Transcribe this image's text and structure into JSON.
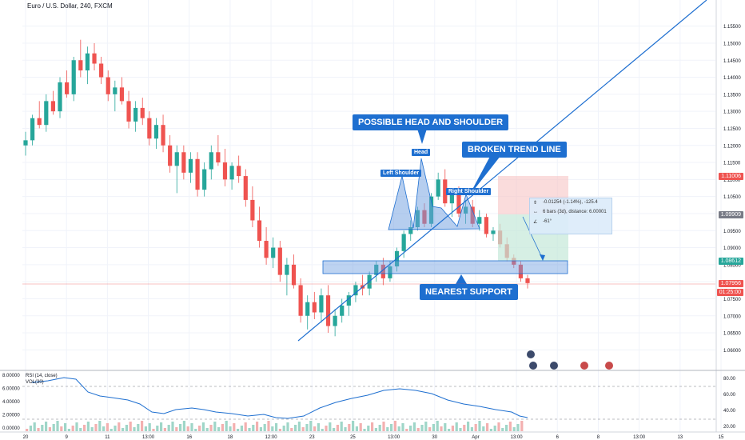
{
  "header": {
    "symbol_title": "Euro / U.S. Dollar, 240, FXCM"
  },
  "price_axis": {
    "ticks": [
      "1.15500",
      "1.15000",
      "1.14500",
      "1.14000",
      "1.13500",
      "1.13000",
      "1.12500",
      "1.12000",
      "1.11500",
      "1.11000",
      "1.10500",
      "1.10000",
      "1.09500",
      "1.09000",
      "1.08500",
      "1.08000",
      "1.07500",
      "1.07000",
      "1.06500",
      "1.06000"
    ],
    "ylim": [
      1.0575,
      1.1575
    ]
  },
  "price_tags": {
    "stop": {
      "value": "1.11006",
      "color": "#ef5350"
    },
    "entry": {
      "value": "1.09909",
      "color": "#787b86"
    },
    "target": {
      "value": "1.08612",
      "color": "#26a69a"
    },
    "last": {
      "value": "1.07956",
      "color": "#ef5350"
    },
    "countdown": "01:25:00"
  },
  "time_axis": {
    "ticks": [
      "20",
      "9",
      "11",
      "13:00",
      "16",
      "18",
      "12:00",
      "23",
      "25",
      "13:00",
      "30",
      "Apr",
      "13:00",
      "6",
      "8",
      "13:00",
      "13",
      "15"
    ]
  },
  "annotations": {
    "head_shoulder": "POSSIBLE HEAD AND SHOULDER",
    "broken_trend": "BROKEN TREND LINE",
    "nearest_support": "NEAREST SUPPORT",
    "head": "Head",
    "left_shoulder": "Left Shoulder",
    "right_shoulder": "Right Shoulder"
  },
  "measure": {
    "line1": "-0.01254 (-1.14%), -125.4",
    "line2": "6 bars (3d), distance: 6.00001",
    "line3": "-61°"
  },
  "rsi_panel": {
    "label": "RSI (14, close)",
    "vol_label": "VOL(30)",
    "left_ticks": [
      "8.00000",
      "6.00000",
      "4.00000",
      "2.00000",
      "0.00000"
    ],
    "right_ticks": [
      "80.00",
      "60.00",
      "40.00",
      "20.00"
    ]
  },
  "colors": {
    "up": "#26a69a",
    "down": "#ef5350",
    "drawing": "#1e6fd0"
  },
  "chart_data": {
    "type": "candlestick",
    "title": "Euro / U.S. Dollar, 240, FXCM",
    "ylim": [
      1.0575,
      1.1575
    ],
    "candles": [
      [
        1.12,
        1.124,
        1.117,
        1.1215
      ],
      [
        1.1215,
        1.129,
        1.12,
        1.128
      ],
      [
        1.128,
        1.133,
        1.125,
        1.126
      ],
      [
        1.126,
        1.135,
        1.124,
        1.133
      ],
      [
        1.133,
        1.136,
        1.129,
        1.13
      ],
      [
        1.13,
        1.14,
        1.128,
        1.1385
      ],
      [
        1.1385,
        1.142,
        1.134,
        1.135
      ],
      [
        1.135,
        1.146,
        1.133,
        1.145
      ],
      [
        1.145,
        1.151,
        1.14,
        1.142
      ],
      [
        1.142,
        1.149,
        1.138,
        1.147
      ],
      [
        1.147,
        1.15,
        1.142,
        1.144
      ],
      [
        1.144,
        1.146,
        1.138,
        1.14
      ],
      [
        1.14,
        1.142,
        1.133,
        1.135
      ],
      [
        1.135,
        1.139,
        1.13,
        1.137
      ],
      [
        1.137,
        1.14,
        1.132,
        1.133
      ],
      [
        1.133,
        1.136,
        1.125,
        1.127
      ],
      [
        1.127,
        1.133,
        1.124,
        1.131
      ],
      [
        1.131,
        1.134,
        1.126,
        1.128
      ],
      [
        1.128,
        1.13,
        1.12,
        1.122
      ],
      [
        1.122,
        1.128,
        1.119,
        1.126
      ],
      [
        1.126,
        1.129,
        1.118,
        1.12
      ],
      [
        1.12,
        1.123,
        1.112,
        1.114
      ],
      [
        1.114,
        1.12,
        1.106,
        1.118
      ],
      [
        1.118,
        1.12,
        1.11,
        1.112
      ],
      [
        1.112,
        1.118,
        1.109,
        1.116
      ],
      [
        1.116,
        1.118,
        1.105,
        1.107
      ],
      [
        1.107,
        1.115,
        1.105,
        1.113
      ],
      [
        1.113,
        1.12,
        1.11,
        1.118
      ],
      [
        1.118,
        1.123,
        1.114,
        1.115
      ],
      [
        1.115,
        1.119,
        1.108,
        1.11
      ],
      [
        1.11,
        1.115,
        1.107,
        1.114
      ],
      [
        1.114,
        1.117,
        1.109,
        1.111
      ],
      [
        1.111,
        1.113,
        1.102,
        1.104
      ],
      [
        1.104,
        1.108,
        1.096,
        1.098
      ],
      [
        1.098,
        1.102,
        1.09,
        1.092
      ],
      [
        1.092,
        1.096,
        1.085,
        1.087
      ],
      [
        1.087,
        1.093,
        1.084,
        1.09
      ],
      [
        1.09,
        1.092,
        1.08,
        1.082
      ],
      [
        1.082,
        1.087,
        1.076,
        1.085
      ],
      [
        1.085,
        1.088,
        1.078,
        1.079
      ],
      [
        1.079,
        1.081,
        1.068,
        1.07
      ],
      [
        1.07,
        1.076,
        1.066,
        1.074
      ],
      [
        1.074,
        1.077,
        1.069,
        1.071
      ],
      [
        1.071,
        1.078,
        1.068,
        1.076
      ],
      [
        1.076,
        1.079,
        1.065,
        1.067
      ],
      [
        1.067,
        1.072,
        1.064,
        1.07
      ],
      [
        1.07,
        1.075,
        1.068,
        1.073
      ],
      [
        1.073,
        1.077,
        1.07,
        1.076
      ],
      [
        1.076,
        1.08,
        1.074,
        1.079
      ],
      [
        1.079,
        1.082,
        1.076,
        1.078
      ],
      [
        1.078,
        1.083,
        1.076,
        1.082
      ],
      [
        1.082,
        1.086,
        1.08,
        1.085
      ],
      [
        1.085,
        1.087,
        1.079,
        1.081
      ],
      [
        1.081,
        1.086,
        1.08,
        1.0845
      ],
      [
        1.0845,
        1.09,
        1.083,
        1.089
      ],
      [
        1.089,
        1.095,
        1.087,
        1.094
      ],
      [
        1.094,
        1.098,
        1.092,
        1.096
      ],
      [
        1.096,
        1.102,
        1.095,
        1.101
      ],
      [
        1.101,
        1.103,
        1.096,
        1.097
      ],
      [
        1.097,
        1.106,
        1.096,
        1.105
      ],
      [
        1.105,
        1.112,
        1.104,
        1.11
      ],
      [
        1.11,
        1.113,
        1.102,
        1.103
      ],
      [
        1.103,
        1.107,
        1.099,
        1.106
      ],
      [
        1.106,
        1.108,
        1.099,
        1.1
      ],
      [
        1.1,
        1.104,
        1.097,
        1.102
      ],
      [
        1.102,
        1.104,
        1.096,
        1.097
      ],
      [
        1.097,
        1.101,
        1.095,
        1.099
      ],
      [
        1.099,
        1.1,
        1.093,
        1.094
      ],
      [
        1.094,
        1.096,
        1.092,
        1.095
      ],
      [
        1.095,
        1.097,
        1.09,
        1.091
      ],
      [
        1.091,
        1.093,
        1.086,
        1.087
      ],
      [
        1.087,
        1.088,
        1.084,
        1.085
      ],
      [
        1.085,
        1.086,
        1.08,
        1.081
      ],
      [
        1.081,
        1.082,
        1.078,
        1.0796
      ]
    ]
  }
}
